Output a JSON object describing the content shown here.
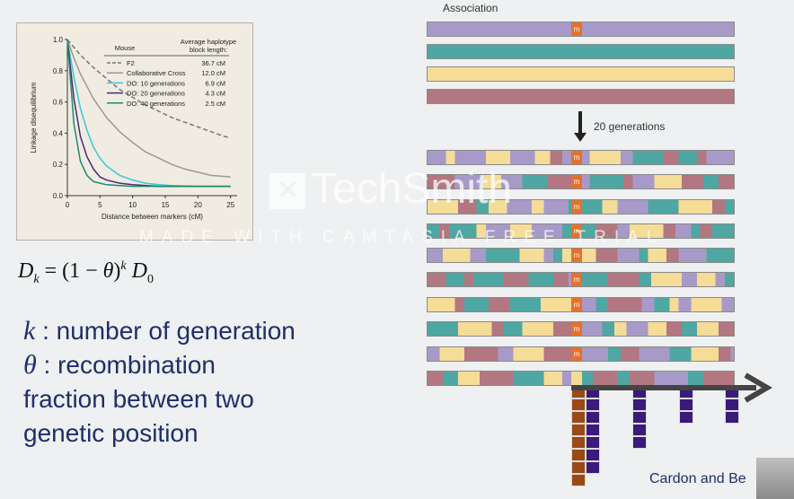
{
  "chart_data": {
    "type": "line",
    "title": "",
    "xlabel": "Distance between markers (cM)",
    "ylabel": "Linkage disequilibrium",
    "xlim": [
      0,
      26
    ],
    "ylim": [
      0,
      1.0
    ],
    "x_ticks": [
      "0",
      "5",
      "10",
      "15",
      "20",
      "25"
    ],
    "y_ticks": [
      "0.0",
      "0.2",
      "0.4",
      "0.6",
      "0.8",
      "1.0"
    ],
    "legend": {
      "placement": "top-right",
      "header_left": "Mouse",
      "header_right_1": "Average haplotype",
      "header_right_2": "block length:"
    },
    "series": [
      {
        "name": "F2",
        "block_length": "36.7 cM",
        "color": "#777777",
        "dashed": true,
        "x": [
          0,
          2,
          4,
          6,
          8,
          10,
          12,
          14,
          16,
          18,
          20,
          22,
          24,
          25
        ],
        "y": [
          1.0,
          0.9,
          0.82,
          0.75,
          0.68,
          0.63,
          0.58,
          0.54,
          0.5,
          0.47,
          0.44,
          0.41,
          0.38,
          0.37
        ]
      },
      {
        "name": "Collaborative Cross",
        "block_length": "12.0 cM",
        "color": "#999999",
        "dashed": false,
        "x": [
          0,
          1,
          2,
          3,
          4,
          6,
          8,
          10,
          12,
          14,
          16,
          18,
          20,
          22,
          25
        ],
        "y": [
          1.0,
          0.88,
          0.78,
          0.7,
          0.62,
          0.5,
          0.41,
          0.34,
          0.28,
          0.24,
          0.2,
          0.17,
          0.15,
          0.13,
          0.12
        ]
      },
      {
        "name": "DO: 10 generations",
        "block_length": "6.9 cM",
        "color": "#3cc7d8",
        "dashed": false,
        "x": [
          0,
          1,
          2,
          3,
          4,
          5,
          6,
          8,
          10,
          12,
          14,
          16,
          20,
          25
        ],
        "y": [
          1.0,
          0.76,
          0.56,
          0.42,
          0.31,
          0.24,
          0.19,
          0.13,
          0.1,
          0.08,
          0.07,
          0.065,
          0.06,
          0.06
        ]
      },
      {
        "name": "DO: 20 generations",
        "block_length": "4.3 cM",
        "color": "#4a2a7a",
        "dashed": false,
        "x": [
          0,
          1,
          2,
          3,
          4,
          5,
          6,
          8,
          10,
          14,
          20,
          25
        ],
        "y": [
          1.0,
          0.62,
          0.38,
          0.25,
          0.17,
          0.12,
          0.1,
          0.08,
          0.07,
          0.06,
          0.06,
          0.06
        ]
      },
      {
        "name": "DO: 40 generations",
        "block_length": "2.5 cM",
        "color": "#1e8a6a",
        "dashed": false,
        "x": [
          0,
          1,
          2,
          3,
          4,
          5,
          6,
          8,
          10,
          14,
          20,
          25
        ],
        "y": [
          1.0,
          0.46,
          0.22,
          0.13,
          0.09,
          0.08,
          0.07,
          0.065,
          0.06,
          0.06,
          0.06,
          0.06
        ]
      }
    ]
  },
  "formula": {
    "lhs_symbol": "D",
    "lhs_subscript": "k",
    "equals": " = (1 − ",
    "theta": "θ",
    "paren_close": ")",
    "exponent": "k",
    "rhs_symbol": "D",
    "rhs_subscript": "0"
  },
  "definitions": {
    "k_symbol": "k",
    "k_text": " : number of generation",
    "theta_symbol": "θ",
    "theta_text": " : recombination",
    "line3": "fraction between two",
    "line4": "genetic position"
  },
  "diagram": {
    "title": "Association",
    "generations_label": "20 generations",
    "marker_letter": "m",
    "colors": {
      "purple": "#a89ac8",
      "teal": "#4fa7a3",
      "yellow": "#f5dc97",
      "rose": "#b27780",
      "marker": "#e8712a",
      "brown": "#9a4a14",
      "navy": "#3a1a7a"
    },
    "founder_bars": [
      "purple",
      "teal",
      "yellow",
      "rose"
    ],
    "histogram_heights": [
      8,
      7,
      5,
      3,
      3
    ]
  },
  "watermark": {
    "brand": "TechSmith",
    "subtitle": "MADE WITH CAMTASIA FREE TRIAL"
  },
  "citation": "Cardon and Be"
}
